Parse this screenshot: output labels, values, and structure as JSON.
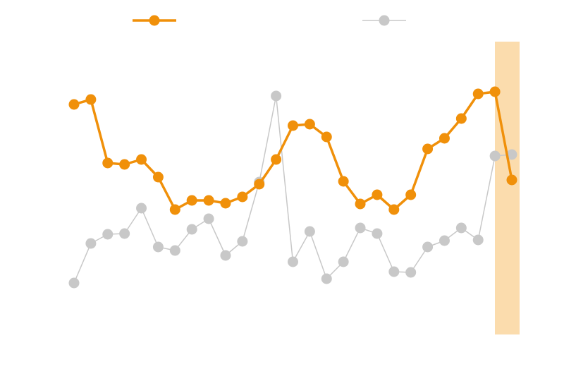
{
  "chart_data": {
    "type": "line",
    "categories": [
      null,
      null,
      null,
      null,
      null,
      null,
      null,
      null,
      null,
      null,
      null,
      null,
      null,
      null,
      null,
      null,
      null,
      null,
      null,
      null,
      null,
      null,
      null,
      null,
      null,
      null,
      null
    ],
    "series": [
      {
        "color": "#f0900a",
        "values": [
          326,
          333,
          243,
          241,
          248,
          223,
          177,
          190,
          190,
          186,
          195,
          213,
          248,
          296,
          298,
          280,
          217,
          185,
          198,
          177,
          198,
          263,
          278,
          306,
          341,
          344,
          219
        ]
      },
      {
        "color": "#c8c8c8",
        "values": [
          73,
          129,
          142,
          143,
          179,
          124,
          119,
          149,
          164,
          112,
          132,
          216,
          338,
          103,
          146,
          79,
          103,
          151,
          143,
          89,
          88,
          124,
          133,
          151,
          134,
          253,
          255
        ]
      }
    ],
    "ylim": [
      0,
      415
    ]
  }
}
